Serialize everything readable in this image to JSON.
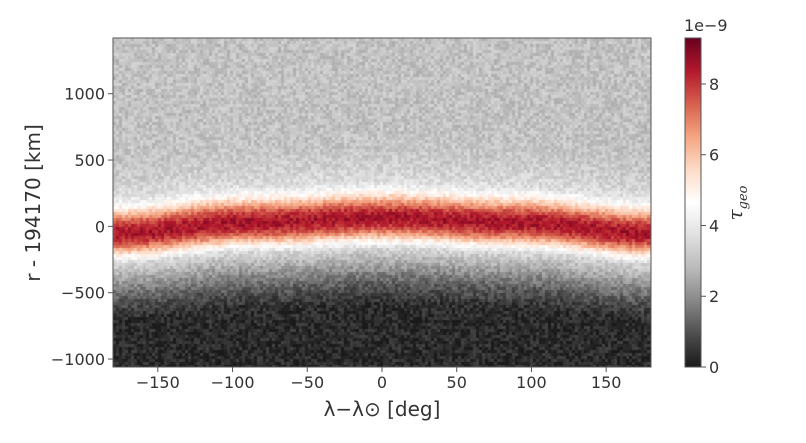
{
  "chart_data": {
    "type": "heatmap",
    "title": "",
    "xlabel": "λ−λ⊙ [deg]",
    "ylabel": "r - 194170 [km]",
    "xlim": [
      -180,
      180
    ],
    "ylim": [
      -1060,
      1420
    ],
    "x_ticks": [
      -150,
      -100,
      -50,
      0,
      50,
      100,
      150
    ],
    "x_tick_labels": [
      "−150",
      "−100",
      "−50",
      "0",
      "50",
      "100",
      "150"
    ],
    "y_ticks": [
      -1000,
      -500,
      0,
      500,
      1000
    ],
    "y_tick_labels": [
      "−1000",
      "−500",
      "0",
      "500",
      "1000"
    ],
    "colorbar": {
      "label": "τ_geo",
      "label_main": "τ",
      "label_sub": "geo",
      "multiplier": "1e−9",
      "range": [
        0,
        9.3
      ],
      "ticks": [
        0,
        2,
        4,
        6,
        8
      ],
      "tick_labels": [
        "0",
        "2",
        "4",
        "6",
        "8"
      ],
      "colormap": "RdGy_r",
      "colors": [
        "#1a1a1a",
        "#4d4d4d",
        "#878787",
        "#bababa",
        "#e0e0e0",
        "#ffffff",
        "#fddbc7",
        "#f4a582",
        "#d6604d",
        "#b2182b",
        "#67001f"
      ]
    },
    "structure": {
      "ring_center_r_km": [
        {
          "lambda": -180,
          "r": -40
        },
        {
          "lambda": -90,
          "r": 40
        },
        {
          "lambda": 0,
          "r": 75
        },
        {
          "lambda": 90,
          "r": 40
        },
        {
          "lambda": 180,
          "r": -40
        }
      ],
      "peak_tau": 8.5,
      "core_half_width_km": 200,
      "halo_tau": 4.5,
      "background_tau_above": 3.0,
      "background_tau_below_min": 0.3,
      "depletion_center_r_km": -900
    }
  }
}
